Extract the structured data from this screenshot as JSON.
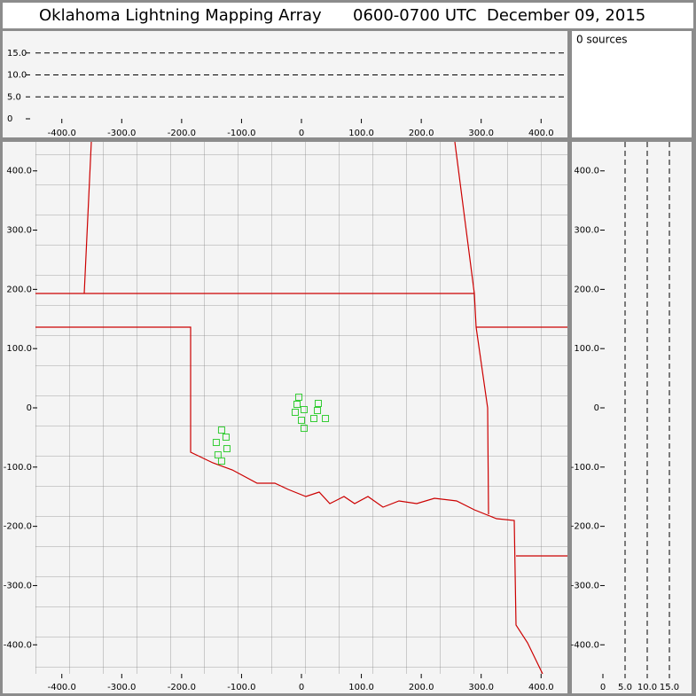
{
  "title": "Oklahoma Lightning Mapping Array",
  "time_range": "0600-0700 UTC",
  "date": "December 09, 2015",
  "sources_text": "0 sources",
  "chart_data": [
    {
      "type": "scatter",
      "xlim": [
        -444,
        444
      ],
      "ylim": [
        -449,
        449
      ],
      "color": "#33cc33",
      "xticks": [
        {
          "value": -400,
          "label": "-400.0"
        },
        {
          "value": -300,
          "label": "-300.0"
        },
        {
          "value": -200,
          "label": "-200.0"
        },
        {
          "value": -100,
          "label": "-100.0"
        },
        0,
        {
          "value": 100,
          "label": "100.0"
        },
        {
          "value": 200,
          "label": "200.0"
        },
        {
          "value": 300,
          "label": "300.0"
        },
        {
          "value": 400,
          "label": "400.0"
        }
      ],
      "yticks": [
        {
          "value": -400,
          "label": "-400.0"
        },
        {
          "value": -300,
          "label": "-300.0"
        },
        {
          "value": -200,
          "label": "-200.0"
        },
        {
          "value": -100,
          "label": "-100.0"
        },
        0,
        {
          "value": 100,
          "label": "100.0"
        },
        {
          "value": 200,
          "label": "200.0"
        },
        {
          "value": 300,
          "label": "300.0"
        },
        {
          "value": 400,
          "label": "400.0"
        }
      ],
      "x": [
        -4.4,
        -7.4,
        4.4,
        -10.4,
        28.1,
        26.7,
        40.0,
        20.7,
        0,
        4.4,
        -133.3,
        -125.9,
        -142.2,
        -124.4,
        -139.3,
        -133.3
      ],
      "values": [
        18.0,
        6.0,
        -3.0,
        -7.5,
        7.5,
        -4.5,
        -18.0,
        -18.0,
        -21.0,
        -34.5,
        -37.5,
        -49.4,
        -58.4,
        -68.9,
        -79.4,
        -89.9
      ]
    },
    {
      "type": "scatter",
      "xlim": [
        -444,
        444
      ],
      "ylim": [
        0,
        20
      ],
      "grid": true,
      "xticks": [
        {
          "value": -400,
          "label": "-400.0"
        },
        {
          "value": -300,
          "label": "-300.0"
        },
        {
          "value": -200,
          "label": "-200.0"
        },
        {
          "value": -100,
          "label": "-100.0"
        },
        0,
        {
          "value": 100,
          "label": "100.0"
        },
        {
          "value": 200,
          "label": "200.0"
        },
        {
          "value": 300,
          "label": "300.0"
        },
        {
          "value": 400,
          "label": "400.0"
        }
      ],
      "yticks": [
        0,
        {
          "value": 5,
          "label": "5.0"
        },
        {
          "value": 10,
          "label": "10.0"
        },
        {
          "value": 15,
          "label": "15.0"
        }
      ]
    },
    {
      "type": "scatter",
      "xlim": [
        0,
        20
      ],
      "ylim": [
        -449,
        449
      ],
      "grid": true,
      "xticks": [
        0,
        {
          "value": 5,
          "label": "5.0"
        },
        {
          "value": 10,
          "label": "10.0"
        },
        {
          "value": 15,
          "label": "15.0"
        }
      ],
      "yticks": [
        {
          "value": -400,
          "label": "-400.0"
        },
        {
          "value": -300,
          "label": "-300.0"
        },
        {
          "value": -200,
          "label": "-200.0"
        },
        {
          "value": -100,
          "label": "-100.0"
        },
        0,
        {
          "value": 100,
          "label": "100.0"
        },
        {
          "value": 200,
          "label": "200.0"
        },
        {
          "value": 300,
          "label": "300.0"
        },
        {
          "value": 400,
          "label": "400.0"
        }
      ]
    }
  ]
}
